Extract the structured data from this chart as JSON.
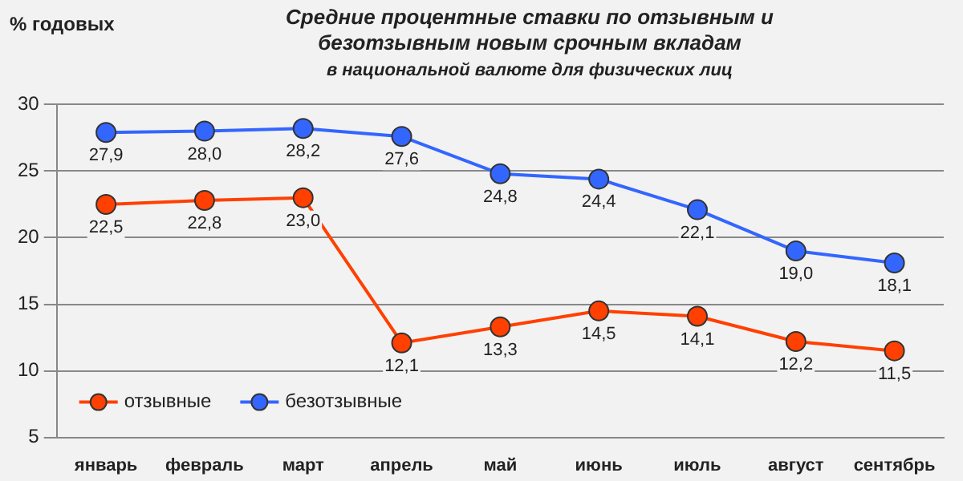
{
  "chart_data": {
    "type": "line",
    "title": "Средние процентные ставки по отзывным и безотзывным новым срочным вкладам",
    "subtitle": "в национальной валюте для физических лиц",
    "ylabel": "% годовых",
    "categories": [
      "январь",
      "февраль",
      "март",
      "апрель",
      "май",
      "июнь",
      "июль",
      "август",
      "сентябрь"
    ],
    "series": [
      {
        "name": "отзывные",
        "color": "#ff4000",
        "values": [
          22.5,
          22.8,
          23.0,
          12.1,
          13.3,
          14.5,
          14.1,
          12.2,
          11.5
        ],
        "value_labels": [
          "22,5",
          "22,8",
          "23,0",
          "12,1",
          "13,3",
          "14,5",
          "14,1",
          "12,2",
          "11,5"
        ]
      },
      {
        "name": "безотзывные",
        "color": "#3366ff",
        "values": [
          27.9,
          28.0,
          28.2,
          27.6,
          24.8,
          24.4,
          22.1,
          19.0,
          18.1
        ],
        "value_labels": [
          "27,9",
          "28,0",
          "28,2",
          "27,6",
          "24,8",
          "24,4",
          "22,1",
          "19,0",
          "18,1"
        ]
      }
    ],
    "ylim": [
      5,
      30
    ],
    "yticks": [
      5,
      10,
      15,
      20,
      25,
      30
    ],
    "grid": "y",
    "legend": "bottom left",
    "marker": "circle",
    "line_style": "solid"
  }
}
